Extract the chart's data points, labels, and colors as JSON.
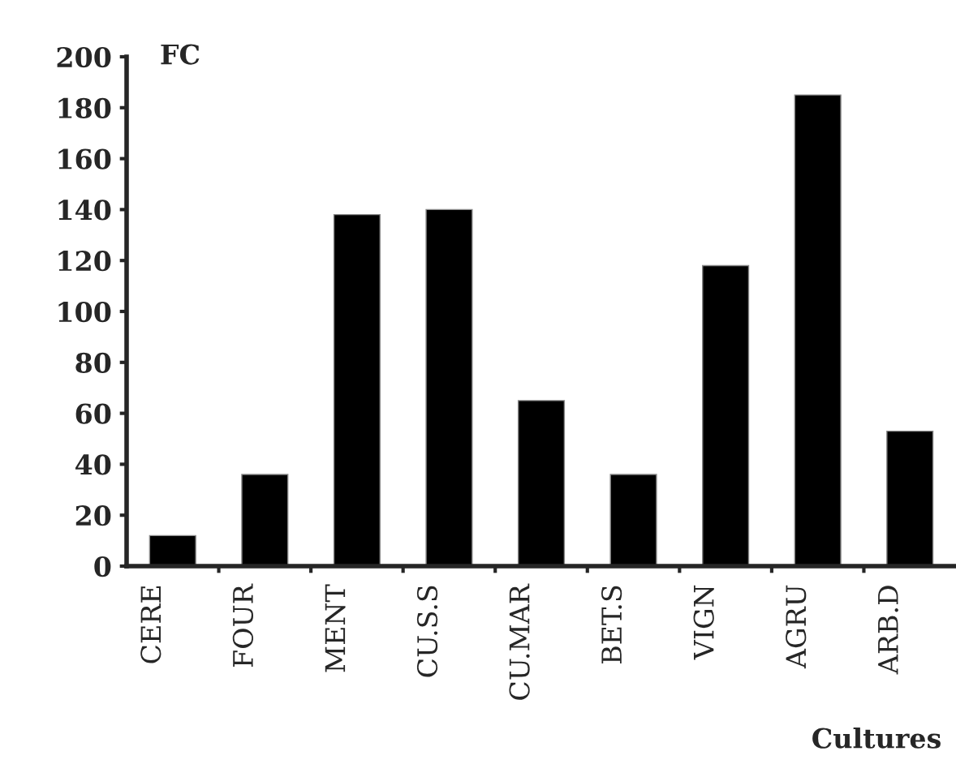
{
  "chart_data": {
    "type": "bar",
    "ylabel": "FC",
    "xlabel": "Cultures",
    "categories": [
      "CERE",
      "FOUR",
      "MENT",
      "CU.S.S",
      "CU.MAR",
      "BET.S",
      "VIGN",
      "AGRU",
      "ARB.D"
    ],
    "values": [
      12,
      36,
      138,
      140,
      65,
      36,
      118,
      185,
      53
    ],
    "color": "#000000",
    "ylim": [
      0,
      200
    ],
    "yticks": [
      0,
      20,
      40,
      60,
      80,
      100,
      120,
      140,
      160,
      180,
      200
    ],
    "grid": false,
    "legend": false
  }
}
